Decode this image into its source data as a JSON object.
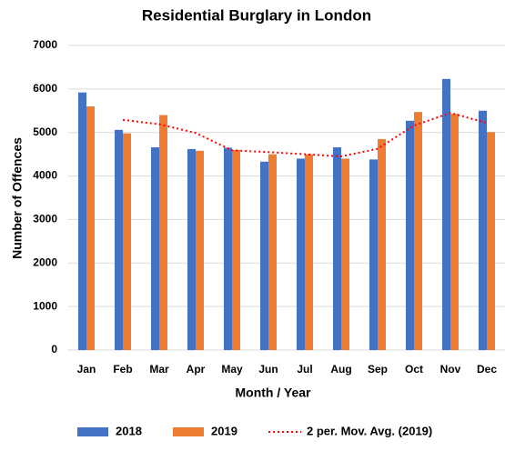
{
  "chart_data": {
    "type": "bar",
    "title": "Residential Burglary in London",
    "x_label": "Month / Year",
    "y_label": "Number of Offences",
    "categories": [
      "Jan",
      "Feb",
      "Mar",
      "Apr",
      "May",
      "Jun",
      "Jul",
      "Aug",
      "Sep",
      "Oct",
      "Nov",
      "Dec"
    ],
    "series": [
      {
        "name": "2018",
        "color": "#4472c4",
        "values": [
          5920,
          5060,
          4660,
          4620,
          4650,
          4330,
          4400,
          4660,
          4380,
          5270,
          6230,
          5500
        ]
      },
      {
        "name": "2019",
        "color": "#ed7d31",
        "values": [
          5600,
          4980,
          5400,
          4580,
          4600,
          4500,
          4500,
          4400,
          4850,
          5470,
          5430,
          5010
        ]
      },
      {
        "name": "2 per. Mov. Avg. (2019)",
        "color": "#ff0000",
        "type": "line",
        "line_style": "dotted",
        "values": [
          null,
          5290,
          5190,
          4990,
          4590,
          4550,
          4500,
          4450,
          4625,
          5160,
          5450,
          5220
        ]
      }
    ],
    "ylim": [
      0,
      7000
    ],
    "yticks": [
      0,
      1000,
      2000,
      3000,
      4000,
      5000,
      6000,
      7000
    ],
    "grid": true,
    "legend": "bottom"
  }
}
